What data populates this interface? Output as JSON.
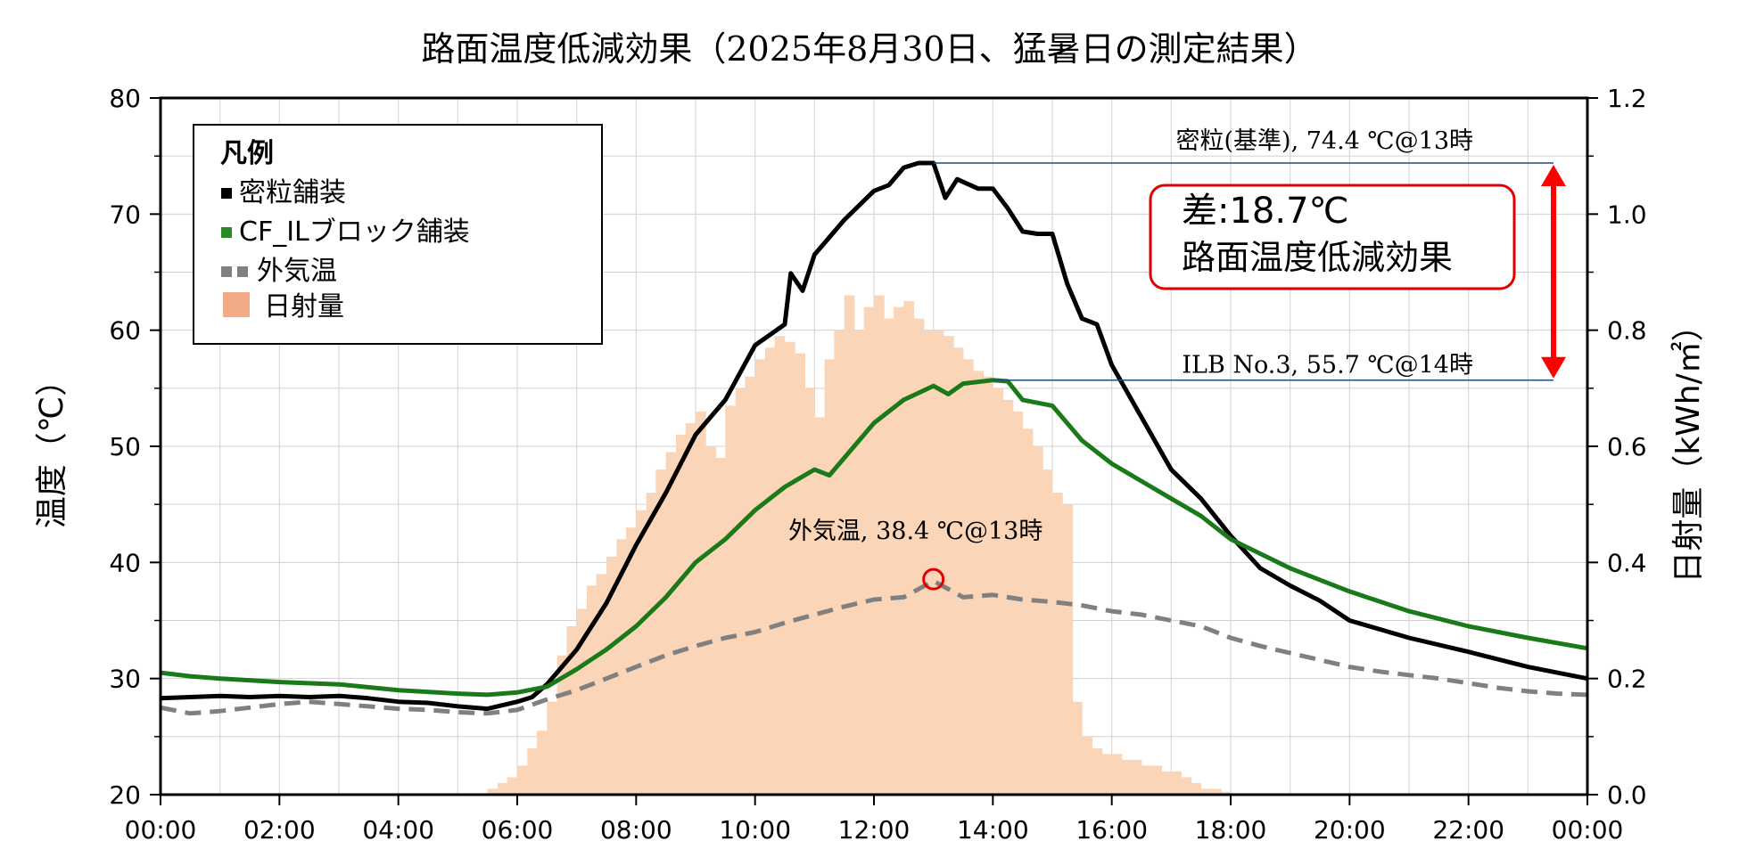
{
  "chart_data": {
    "type": "line",
    "title": "路面温度低減効果（2025年8月30日、猛暑日の測定結果）",
    "ylabel": "温度（℃）",
    "y2label": "日射量（kWh/㎡）",
    "ylim": [
      20,
      80
    ],
    "y2lim": [
      0.0,
      1.2
    ],
    "yticks": [
      "20",
      "30",
      "40",
      "50",
      "60",
      "70",
      "80"
    ],
    "y2ticks": [
      "0.0",
      "0.2",
      "0.4",
      "0.6",
      "0.8",
      "1.0",
      "1.2"
    ],
    "xticks": [
      "00:00",
      "02:00",
      "04:00",
      "06:00",
      "08:00",
      "10:00",
      "12:00",
      "14:00",
      "16:00",
      "18:00",
      "20:00",
      "22:00",
      "00:00"
    ],
    "xlim_hours": [
      0,
      24
    ],
    "grid": true,
    "legend": {
      "title": "凡例",
      "position": "top-left",
      "items": [
        {
          "label": "密粒舗装",
          "color": "#000000",
          "style": "solid"
        },
        {
          "label": "CF_ILブロック舗装",
          "color": "#1a7a1a",
          "style": "solid"
        },
        {
          "label": "外気温",
          "color": "#808080",
          "style": "dashed"
        },
        {
          "label": "日射量",
          "color": "#f5b08c",
          "style": "bar"
        }
      ]
    },
    "series": [
      {
        "name": "密粒舗装",
        "color": "#000000",
        "x": [
          0,
          0.5,
          1,
          1.5,
          2,
          2.5,
          3,
          3.5,
          4,
          4.5,
          5,
          5.5,
          6,
          6.25,
          6.5,
          7,
          7.5,
          8,
          8.5,
          9,
          9.5,
          10,
          10.5,
          10.6,
          10.8,
          11,
          11.5,
          12,
          12.25,
          12.5,
          12.75,
          13,
          13.2,
          13.4,
          13.75,
          14,
          14.25,
          14.5,
          14.75,
          15,
          15.25,
          15.5,
          15.75,
          16,
          16.5,
          17,
          17.5,
          18,
          18.5,
          19,
          19.5,
          20,
          21,
          22,
          23,
          24
        ],
        "values": [
          28.3,
          28.4,
          28.5,
          28.4,
          28.5,
          28.4,
          28.5,
          28.3,
          28.0,
          27.9,
          27.6,
          27.4,
          28.0,
          28.4,
          29.5,
          32.5,
          36.5,
          41.5,
          46.0,
          51.0,
          54.0,
          58.7,
          60.5,
          64.9,
          63.4,
          66.5,
          69.5,
          72.0,
          72.5,
          74.0,
          74.4,
          74.4,
          71.4,
          73.0,
          72.2,
          72.2,
          70.5,
          68.5,
          68.3,
          68.3,
          64.0,
          61.0,
          60.5,
          57.0,
          52.5,
          48.0,
          45.5,
          42.3,
          39.5,
          38.0,
          36.7,
          35.0,
          33.5,
          32.3,
          31.0,
          30.0
        ]
      },
      {
        "name": "CF_ILブロック舗装",
        "color": "#1a7a1a",
        "x": [
          0,
          0.5,
          1,
          2,
          3,
          4,
          5,
          5.5,
          6,
          6.5,
          7,
          7.5,
          8,
          8.5,
          9,
          9.5,
          10,
          10.5,
          11,
          11.25,
          11.5,
          12,
          12.5,
          13,
          13.25,
          13.5,
          14,
          14.25,
          14.5,
          15,
          15.5,
          16,
          16.5,
          17,
          17.5,
          18,
          19,
          20,
          21,
          22,
          23,
          24
        ],
        "values": [
          30.5,
          30.2,
          30.0,
          29.7,
          29.5,
          29.0,
          28.7,
          28.6,
          28.8,
          29.3,
          30.8,
          32.5,
          34.5,
          37.0,
          40.0,
          42.0,
          44.5,
          46.5,
          48.0,
          47.5,
          49.0,
          52.0,
          54.0,
          55.2,
          54.5,
          55.4,
          55.7,
          55.6,
          54.0,
          53.5,
          50.5,
          48.5,
          47.0,
          45.5,
          44.0,
          42.0,
          39.5,
          37.5,
          35.8,
          34.5,
          33.5,
          32.6
        ]
      },
      {
        "name": "外気温",
        "color": "#808080",
        "dashed": true,
        "x": [
          0,
          0.5,
          1,
          1.5,
          2,
          2.5,
          3,
          3.5,
          4,
          4.5,
          5,
          5.5,
          6,
          6.5,
          7,
          7.5,
          8,
          8.5,
          9,
          9.5,
          10,
          10.5,
          11,
          11.5,
          12,
          12.5,
          13,
          13.5,
          14,
          14.5,
          15,
          15.5,
          16,
          16.5,
          17,
          17.5,
          18,
          18.5,
          19,
          19.5,
          20,
          20.5,
          21,
          21.5,
          22,
          22.5,
          23,
          23.5,
          24
        ],
        "values": [
          27.5,
          27.0,
          27.2,
          27.5,
          27.8,
          28.0,
          27.8,
          27.6,
          27.4,
          27.3,
          27.1,
          27.0,
          27.3,
          28.2,
          29.0,
          30.0,
          31.0,
          32.0,
          32.8,
          33.5,
          34.0,
          34.8,
          35.5,
          36.2,
          36.8,
          37.0,
          38.4,
          37.0,
          37.2,
          36.8,
          36.6,
          36.3,
          35.8,
          35.5,
          35.0,
          34.5,
          33.5,
          32.8,
          32.2,
          31.6,
          31.0,
          30.6,
          30.3,
          30.0,
          29.6,
          29.2,
          28.9,
          28.7,
          28.6
        ]
      },
      {
        "name": "日射量",
        "type": "bar",
        "color": "#fad5b8",
        "bin_hours": 0.1667,
        "x": [
          5.5,
          5.67,
          5.83,
          6.0,
          6.17,
          6.33,
          6.5,
          6.67,
          6.83,
          7.0,
          7.17,
          7.33,
          7.5,
          7.67,
          7.83,
          8.0,
          8.17,
          8.33,
          8.5,
          8.67,
          8.83,
          9.0,
          9.17,
          9.33,
          9.5,
          9.67,
          9.83,
          10.0,
          10.17,
          10.33,
          10.5,
          10.67,
          10.83,
          11.0,
          11.17,
          11.33,
          11.5,
          11.67,
          11.83,
          12.0,
          12.17,
          12.33,
          12.5,
          12.67,
          12.83,
          13.0,
          13.17,
          13.33,
          13.5,
          13.67,
          13.83,
          14.0,
          14.17,
          14.33,
          14.5,
          14.67,
          14.83,
          15.0,
          15.17,
          15.33,
          15.5,
          15.67,
          15.83,
          16.0,
          16.17,
          16.33,
          16.5,
          16.67,
          16.83,
          17.0,
          17.17,
          17.33,
          17.5,
          17.67,
          17.83
        ],
        "values": [
          0.01,
          0.02,
          0.03,
          0.05,
          0.08,
          0.11,
          0.16,
          0.24,
          0.29,
          0.32,
          0.36,
          0.38,
          0.41,
          0.44,
          0.46,
          0.49,
          0.52,
          0.56,
          0.59,
          0.62,
          0.64,
          0.66,
          0.6,
          0.58,
          0.67,
          0.7,
          0.72,
          0.75,
          0.77,
          0.79,
          0.78,
          0.76,
          0.7,
          0.65,
          0.75,
          0.8,
          0.86,
          0.8,
          0.84,
          0.86,
          0.82,
          0.84,
          0.85,
          0.82,
          0.8,
          0.8,
          0.79,
          0.77,
          0.75,
          0.73,
          0.72,
          0.7,
          0.68,
          0.66,
          0.63,
          0.6,
          0.56,
          0.52,
          0.5,
          0.16,
          0.1,
          0.08,
          0.07,
          0.07,
          0.06,
          0.06,
          0.05,
          0.05,
          0.04,
          0.04,
          0.03,
          0.02,
          0.01,
          0.01,
          0.005
        ]
      }
    ],
    "annotations": {
      "dense_peak": {
        "label": "密粒(基準), 74.4 ℃@13時",
        "x": 13,
        "y": 74.4
      },
      "ilb_peak": {
        "label": "ILB No.3, 55.7 ℃@14時",
        "x": 14,
        "y": 55.7
      },
      "air_peak": {
        "label": "外気温, 38.4 ℃@13時",
        "x": 13,
        "y": 38.4
      },
      "difference_box": {
        "line1": "差:18.7℃",
        "line2": "路面温度低減効果"
      }
    }
  }
}
